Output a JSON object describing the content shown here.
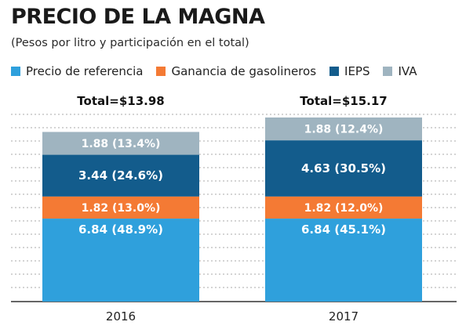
{
  "chart_data": {
    "type": "bar",
    "stacked": true,
    "title": "PRECIO DE LA MAGNA",
    "subtitle": "(Pesos por litro y participación en el total)",
    "categories": [
      "2016",
      "2017"
    ],
    "totals": [
      "Total=$13.98",
      "Total=$15.17"
    ],
    "series": [
      {
        "name": "Precio de referencia",
        "color": "#2fa0dc",
        "values": [
          6.84,
          6.84
        ],
        "labels": [
          "6.84 (48.9%)",
          "6.84 (45.1%)"
        ]
      },
      {
        "name": "Ganancia de gasolineros",
        "color": "#f47a34",
        "values": [
          1.82,
          1.82
        ],
        "labels": [
          "1.82 (13.0%)",
          "1.82 (12.0%)"
        ]
      },
      {
        "name": "IEPS",
        "color": "#135c8c",
        "values": [
          3.44,
          4.63
        ],
        "labels": [
          "3.44 (24.6%)",
          "4.63 (30.5%)"
        ]
      },
      {
        "name": "IVA",
        "color": "#9fb4c0",
        "values": [
          1.88,
          1.88
        ],
        "labels": [
          "1.88 (13.4%)",
          "1.88 (12.4%)"
        ]
      }
    ],
    "grid": true,
    "legend_position": "top"
  }
}
